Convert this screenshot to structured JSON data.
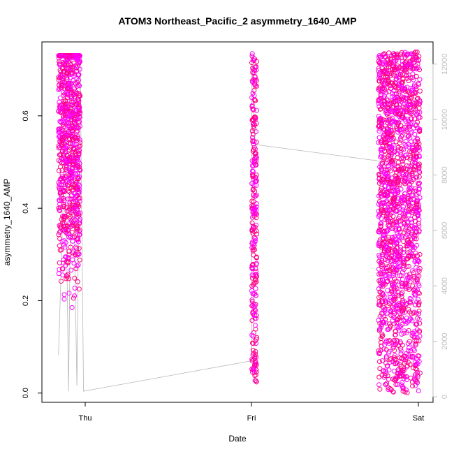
{
  "chart_data": {
    "type": "scatter",
    "title": "ATOM3 Northeast_Pacific_2 asymmetry_1640_AMP",
    "xlabel": "Date",
    "ylabel": "asymmetry_1640_AMP",
    "x_ticks": [
      "Thu",
      "Fri",
      "Sat"
    ],
    "y_ticks": [
      "0.0",
      "0.2",
      "0.4",
      "0.6"
    ],
    "ylim": [
      -0.02,
      0.76
    ],
    "y2_ticks": [
      "0",
      "2000",
      "4000",
      "6000",
      "8000",
      "10000",
      "12000"
    ],
    "y2lim": [
      -200,
      12800
    ],
    "grid": false,
    "marker_colors": [
      "#ff00ff",
      "#ff0080"
    ],
    "trace_color": "#b5b5b5",
    "series": [
      {
        "group": "Thu",
        "day_offset_range": [
          -0.16,
          -0.03
        ],
        "y_range": [
          0.06,
          0.73
        ],
        "y_centers": [
          0.68,
          0.45
        ],
        "points": 900
      },
      {
        "group": "Fri",
        "day_offset_range": [
          0.0,
          0.03
        ],
        "y_range": [
          0.02,
          0.75
        ],
        "points": 260
      },
      {
        "group": "Sat",
        "day_offset_range": [
          -0.24,
          0.01
        ],
        "y_range": [
          0.0,
          0.74
        ],
        "points": 1700
      }
    ],
    "trace_line": [
      {
        "x": -0.16,
        "y2": 1500
      },
      {
        "x": -0.12,
        "y2": 9500
      },
      {
        "x": -0.1,
        "y2": 200
      },
      {
        "x": -0.08,
        "y2": 11500
      },
      {
        "x": -0.05,
        "y2": 400
      },
      {
        "x": -0.03,
        "y2": 12100
      },
      {
        "x": -0.01,
        "y2": 200
      },
      {
        "x": 1.0,
        "y2": 1300
      },
      {
        "x": 1.0,
        "y2": 12300
      },
      {
        "x": 1.02,
        "y2": 9100
      },
      {
        "x": 1.77,
        "y2": 8500
      },
      {
        "x": 1.77,
        "y2": 1700
      }
    ]
  }
}
